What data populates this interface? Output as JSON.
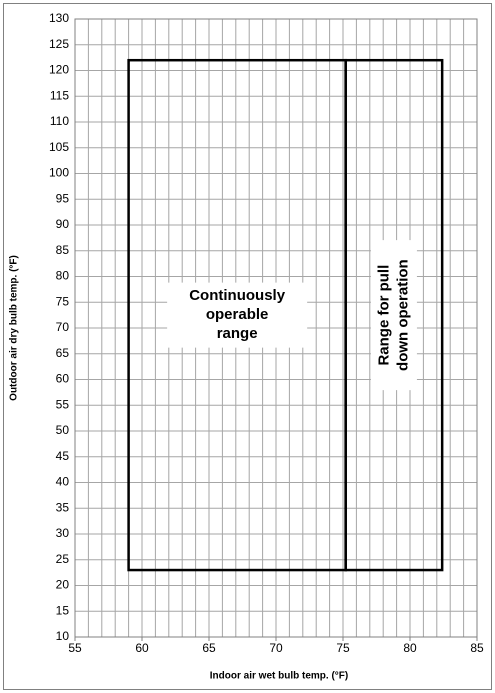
{
  "chart_data": {
    "type": "range",
    "x_label": "Indoor air wet bulb temp.  (°F)",
    "y_label": "Outdoor air dry bulb temp. (°F)",
    "xlim": [
      55,
      85
    ],
    "xticks": [
      55,
      60,
      65,
      70,
      75,
      80,
      85
    ],
    "ylim": [
      10,
      130
    ],
    "yticks": [
      10,
      15,
      20,
      25,
      30,
      35,
      40,
      45,
      50,
      55,
      60,
      65,
      70,
      75,
      80,
      85,
      90,
      95,
      100,
      105,
      110,
      115,
      120,
      125,
      130
    ],
    "x_minor_step": 1,
    "grid": true,
    "color": "#000000",
    "regions": [
      {
        "label": [
          "Continuously",
          "operable",
          "range"
        ],
        "x": [
          59,
          75.2
        ],
        "y": [
          23,
          122
        ],
        "rotated": false
      },
      {
        "label": [
          "Range for pull",
          "down operation"
        ],
        "x": [
          75.2,
          82.4
        ],
        "y": [
          23,
          122
        ],
        "rotated": true
      }
    ]
  }
}
